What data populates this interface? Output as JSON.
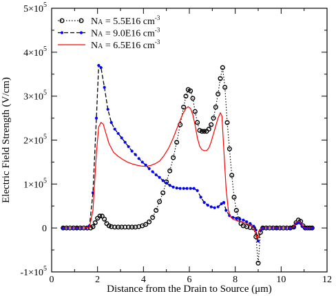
{
  "chart_data": {
    "type": "line",
    "xlabel": "Distance from the Drain to Source (μm)",
    "ylabel": "Electric Field Strength (V/cm)",
    "xlim": [
      0,
      12
    ],
    "ylim": [
      -100000,
      500000
    ],
    "x_ticks": [
      {
        "value": 0,
        "label": "0"
      },
      {
        "value": 2,
        "label": "2"
      },
      {
        "value": 4,
        "label": "4"
      },
      {
        "value": 6,
        "label": "6"
      },
      {
        "value": 8,
        "label": "8"
      },
      {
        "value": 10,
        "label": "10"
      },
      {
        "value": 12,
        "label": "12"
      }
    ],
    "y_ticks": [
      {
        "value": -100000,
        "base": "-1×10",
        "exp": "5"
      },
      {
        "value": 0,
        "base": "0",
        "exp": ""
      },
      {
        "value": 100000,
        "base": "1×10",
        "exp": "5"
      },
      {
        "value": 200000,
        "base": "2×10",
        "exp": "5"
      },
      {
        "value": 300000,
        "base": "3×10",
        "exp": "5"
      },
      {
        "value": 400000,
        "base": "4×10",
        "exp": "5"
      },
      {
        "value": 500000,
        "base": "5×10",
        "exp": "5"
      }
    ],
    "grid": false,
    "legend_position": "top-left",
    "series": [
      {
        "name": "NA = 5.5E16 cm-3",
        "legend": {
          "main": "N",
          "sub": "A",
          "rest": " = 5.5E16 cm",
          "sup": "-3"
        },
        "color": "#000000",
        "line_style": "dotted",
        "marker": "open-circle",
        "points": [
          [
            0.5,
            0
          ],
          [
            0.65,
            0
          ],
          [
            0.8,
            0
          ],
          [
            0.95,
            0
          ],
          [
            1.1,
            0
          ],
          [
            1.25,
            0
          ],
          [
            1.4,
            0
          ],
          [
            1.55,
            0
          ],
          [
            1.7,
            0
          ],
          [
            1.8,
            3000
          ],
          [
            1.9,
            12000
          ],
          [
            2.0,
            22000
          ],
          [
            2.1,
            27000
          ],
          [
            2.2,
            27000
          ],
          [
            2.3,
            20000
          ],
          [
            2.4,
            10000
          ],
          [
            2.5,
            5000
          ],
          [
            2.6,
            3000
          ],
          [
            2.75,
            2000
          ],
          [
            2.9,
            2000
          ],
          [
            3.05,
            2000
          ],
          [
            3.2,
            2000
          ],
          [
            3.35,
            2000
          ],
          [
            3.5,
            2000
          ],
          [
            3.65,
            2000
          ],
          [
            3.8,
            3000
          ],
          [
            3.95,
            5000
          ],
          [
            4.1,
            8000
          ],
          [
            4.25,
            14000
          ],
          [
            4.4,
            24000
          ],
          [
            4.55,
            40000
          ],
          [
            4.7,
            60000
          ],
          [
            4.85,
            80000
          ],
          [
            5.0,
            105000
          ],
          [
            5.15,
            130000
          ],
          [
            5.3,
            160000
          ],
          [
            5.45,
            195000
          ],
          [
            5.6,
            235000
          ],
          [
            5.75,
            275000
          ],
          [
            5.85,
            300000
          ],
          [
            5.95,
            315000
          ],
          [
            6.05,
            312000
          ],
          [
            6.15,
            295000
          ],
          [
            6.25,
            265000
          ],
          [
            6.35,
            240000
          ],
          [
            6.45,
            222000
          ],
          [
            6.55,
            220000
          ],
          [
            6.65,
            220000
          ],
          [
            6.75,
            220000
          ],
          [
            6.85,
            225000
          ],
          [
            6.95,
            235000
          ],
          [
            7.05,
            250000
          ],
          [
            7.15,
            275000
          ],
          [
            7.25,
            305000
          ],
          [
            7.35,
            340000
          ],
          [
            7.45,
            365000
          ],
          [
            7.55,
            320000
          ],
          [
            7.65,
            240000
          ],
          [
            7.75,
            180000
          ],
          [
            7.85,
            120000
          ],
          [
            7.95,
            70000
          ],
          [
            8.05,
            40000
          ],
          [
            8.15,
            20000
          ],
          [
            8.25,
            10000
          ],
          [
            8.35,
            5000
          ],
          [
            8.5,
            3000
          ],
          [
            8.65,
            1000
          ],
          [
            8.8,
            0
          ],
          [
            8.9,
            -20000
          ],
          [
            9.0,
            -80000
          ],
          [
            9.1,
            -10000
          ],
          [
            9.2,
            0
          ],
          [
            9.35,
            0
          ],
          [
            9.5,
            0
          ],
          [
            9.65,
            0
          ],
          [
            9.8,
            0
          ],
          [
            9.95,
            0
          ],
          [
            10.1,
            0
          ],
          [
            10.25,
            0
          ],
          [
            10.4,
            0
          ],
          [
            10.55,
            2000
          ],
          [
            10.65,
            12000
          ],
          [
            10.75,
            18000
          ],
          [
            10.85,
            15000
          ],
          [
            10.95,
            5000
          ],
          [
            11.05,
            0
          ],
          [
            11.15,
            0
          ],
          [
            11.25,
            0
          ],
          [
            11.35,
            0
          ]
        ]
      },
      {
        "name": "NA = 9.0E16 cm-3",
        "legend": {
          "main": "N",
          "sub": "A",
          "rest": " = 9.0E16 cm",
          "sup": "-3"
        },
        "color": "#0000ff",
        "line_style": "dashed",
        "line_color": "#000000",
        "marker": "filled-dot",
        "points": [
          [
            0.5,
            0
          ],
          [
            0.7,
            0
          ],
          [
            0.9,
            0
          ],
          [
            1.1,
            0
          ],
          [
            1.3,
            0
          ],
          [
            1.5,
            0
          ],
          [
            1.65,
            5000
          ],
          [
            1.8,
            80000
          ],
          [
            1.95,
            250000
          ],
          [
            2.05,
            370000
          ],
          [
            2.15,
            365000
          ],
          [
            2.3,
            320000
          ],
          [
            2.45,
            270000
          ],
          [
            2.6,
            240000
          ],
          [
            2.75,
            225000
          ],
          [
            2.9,
            215000
          ],
          [
            3.05,
            205000
          ],
          [
            3.2,
            195000
          ],
          [
            3.35,
            185000
          ],
          [
            3.5,
            175000
          ],
          [
            3.65,
            167000
          ],
          [
            3.8,
            158000
          ],
          [
            3.95,
            150000
          ],
          [
            4.1,
            143000
          ],
          [
            4.25,
            135000
          ],
          [
            4.4,
            128000
          ],
          [
            4.55,
            121000
          ],
          [
            4.7,
            115000
          ],
          [
            4.85,
            108000
          ],
          [
            5.0,
            102000
          ],
          [
            5.15,
            97000
          ],
          [
            5.3,
            93000
          ],
          [
            5.45,
            91000
          ],
          [
            5.6,
            90000
          ],
          [
            5.75,
            90000
          ],
          [
            5.9,
            90000
          ],
          [
            6.05,
            90000
          ],
          [
            6.2,
            90000
          ],
          [
            6.35,
            85000
          ],
          [
            6.5,
            70000
          ],
          [
            6.65,
            58000
          ],
          [
            6.8,
            52000
          ],
          [
            6.95,
            48000
          ],
          [
            7.1,
            46000
          ],
          [
            7.25,
            48000
          ],
          [
            7.4,
            55000
          ],
          [
            7.5,
            58000
          ],
          [
            7.6,
            40000
          ],
          [
            7.75,
            28000
          ],
          [
            7.9,
            24000
          ],
          [
            8.05,
            22000
          ],
          [
            8.2,
            20000
          ],
          [
            8.35,
            18000
          ],
          [
            8.5,
            14000
          ],
          [
            8.65,
            10000
          ],
          [
            8.8,
            4000
          ],
          [
            8.9,
            -5000
          ],
          [
            9.0,
            -30000
          ],
          [
            9.1,
            -5000
          ],
          [
            9.2,
            0
          ],
          [
            9.4,
            0
          ],
          [
            9.6,
            0
          ],
          [
            9.8,
            0
          ],
          [
            10.0,
            0
          ],
          [
            10.2,
            0
          ],
          [
            10.4,
            0
          ],
          [
            10.55,
            2000
          ],
          [
            10.65,
            10000
          ],
          [
            10.75,
            12000
          ],
          [
            10.85,
            10000
          ],
          [
            10.95,
            3000
          ],
          [
            11.05,
            0
          ],
          [
            11.2,
            0
          ],
          [
            11.35,
            0
          ]
        ]
      },
      {
        "name": "NA = 6.5E16 cm-3",
        "legend": {
          "main": "N",
          "sub": "A",
          "rest": " = 6.5E16 cm",
          "sup": "-3"
        },
        "color": "#ff0000",
        "line_style": "solid",
        "marker": "none",
        "points": [
          [
            0.5,
            0
          ],
          [
            1.4,
            0
          ],
          [
            1.65,
            2000
          ],
          [
            1.8,
            40000
          ],
          [
            1.95,
            170000
          ],
          [
            2.05,
            230000
          ],
          [
            2.15,
            240000
          ],
          [
            2.25,
            236000
          ],
          [
            2.35,
            218000
          ],
          [
            2.5,
            192000
          ],
          [
            2.7,
            172000
          ],
          [
            2.9,
            163000
          ],
          [
            3.1,
            156000
          ],
          [
            3.3,
            150000
          ],
          [
            3.5,
            146000
          ],
          [
            3.7,
            143000
          ],
          [
            3.9,
            141000
          ],
          [
            4.1,
            140000
          ],
          [
            4.3,
            142000
          ],
          [
            4.5,
            146000
          ],
          [
            4.7,
            152000
          ],
          [
            4.9,
            165000
          ],
          [
            5.1,
            182000
          ],
          [
            5.3,
            205000
          ],
          [
            5.5,
            232000
          ],
          [
            5.7,
            258000
          ],
          [
            5.85,
            272000
          ],
          [
            5.95,
            276000
          ],
          [
            6.05,
            272000
          ],
          [
            6.15,
            258000
          ],
          [
            6.25,
            234000
          ],
          [
            6.35,
            205000
          ],
          [
            6.45,
            186000
          ],
          [
            6.55,
            178000
          ],
          [
            6.65,
            176000
          ],
          [
            6.75,
            176000
          ],
          [
            6.85,
            182000
          ],
          [
            6.95,
            196000
          ],
          [
            7.05,
            214000
          ],
          [
            7.15,
            232000
          ],
          [
            7.25,
            250000
          ],
          [
            7.35,
            262000
          ],
          [
            7.42,
            255000
          ],
          [
            7.5,
            180000
          ],
          [
            7.6,
            90000
          ],
          [
            7.7,
            40000
          ],
          [
            7.8,
            25000
          ],
          [
            7.9,
            20000
          ],
          [
            8.05,
            17000
          ],
          [
            8.2,
            15000
          ],
          [
            8.4,
            12000
          ],
          [
            8.6,
            8000
          ],
          [
            8.75,
            3000
          ],
          [
            8.85,
            -5000
          ],
          [
            8.95,
            -25000
          ],
          [
            9.05,
            -5000
          ],
          [
            9.2,
            0
          ],
          [
            10.5,
            0
          ],
          [
            10.6,
            8000
          ],
          [
            10.7,
            15000
          ],
          [
            10.8,
            15000
          ],
          [
            10.9,
            8000
          ],
          [
            11.0,
            0
          ],
          [
            11.35,
            0
          ]
        ]
      }
    ]
  }
}
